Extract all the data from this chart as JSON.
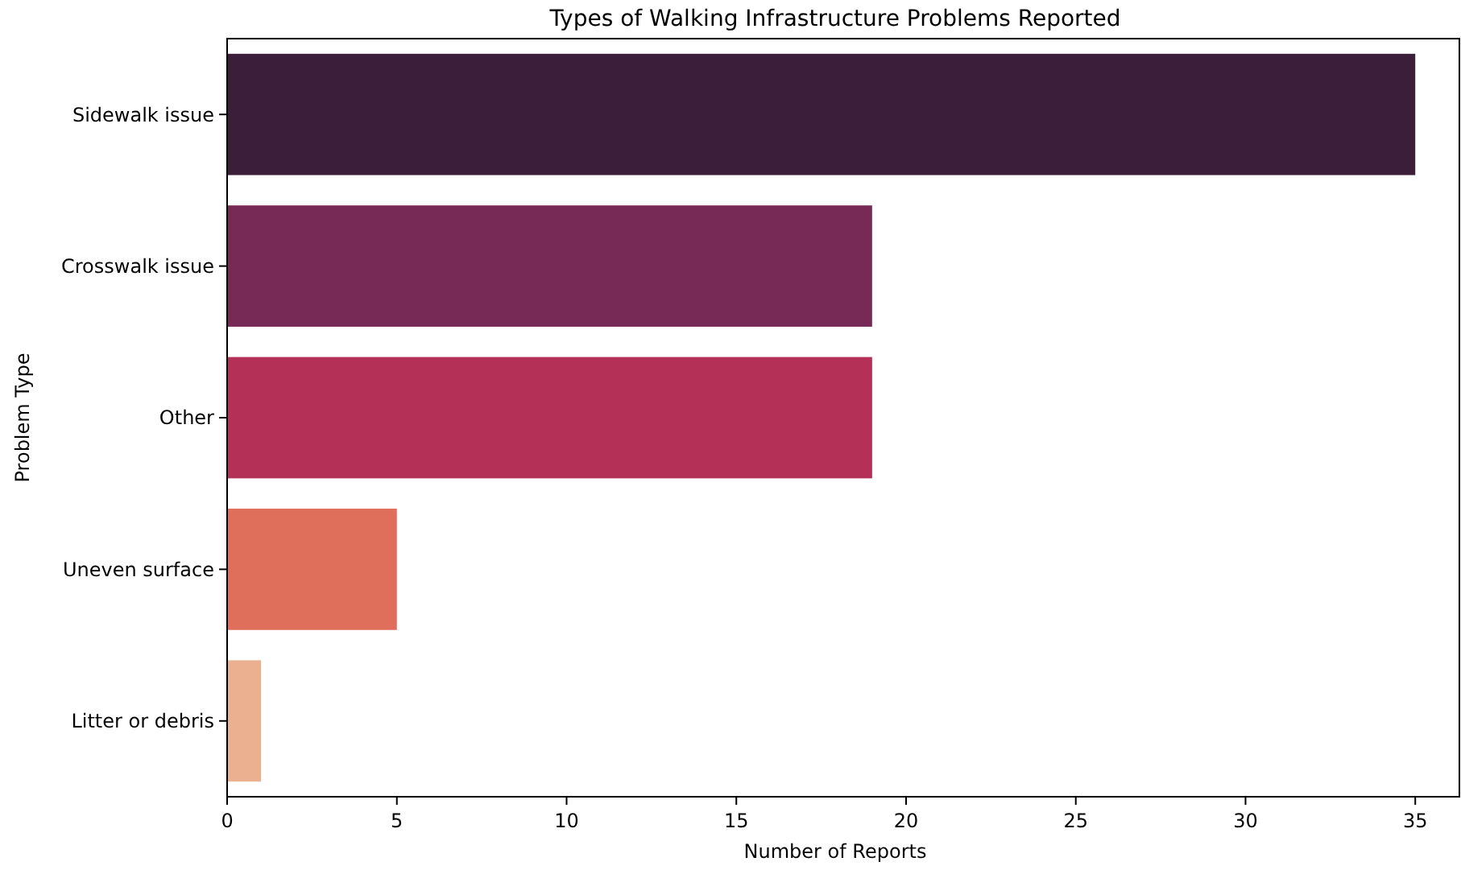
{
  "chart_data": {
    "type": "bar",
    "orientation": "horizontal",
    "title": "Types of Walking Infrastructure Problems Reported",
    "xlabel": "Number of Reports",
    "ylabel": "Problem Type",
    "categories": [
      "Sidewalk issue",
      "Crosswalk issue",
      "Other",
      "Uneven surface",
      "Litter or debris"
    ],
    "values": [
      35,
      19,
      19,
      5,
      1
    ],
    "colors": [
      "#3b1f3a",
      "#772a55",
      "#b53057",
      "#df6e5a",
      "#ebb08f"
    ],
    "xlim": [
      0,
      36.3
    ],
    "xticks": [
      0,
      5,
      10,
      15,
      20,
      25,
      30,
      35
    ],
    "grid": false
  }
}
